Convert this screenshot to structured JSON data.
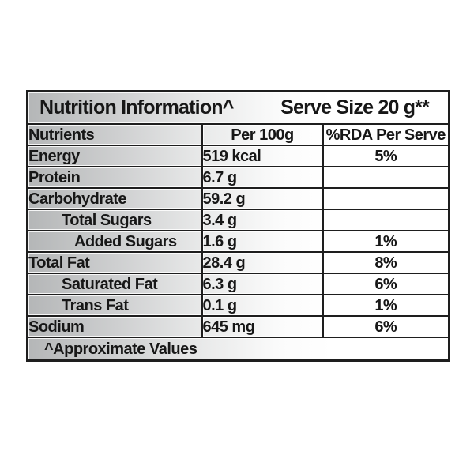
{
  "table": {
    "title": "Nutrition Information^",
    "serve_size": "Serve Size 20 g**",
    "columns": [
      "Nutrients",
      "Per 100g",
      "%RDA Per Serve"
    ],
    "rows": [
      {
        "nutrient": "Energy",
        "per_100g": "519 kcal",
        "rda_per_serve": "5%"
      },
      {
        "nutrient": "Protein",
        "per_100g": "6.7 g",
        "rda_per_serve": ""
      },
      {
        "nutrient": "Carbohydrate",
        "per_100g": "59.2 g",
        "rda_per_serve": ""
      },
      {
        "nutrient": "Total Sugars",
        "per_100g": "3.4 g",
        "rda_per_serve": ""
      },
      {
        "nutrient": "Added Sugars",
        "per_100g": "1.6 g",
        "rda_per_serve": "1%"
      },
      {
        "nutrient": "Total Fat",
        "per_100g": "28.4 g",
        "rda_per_serve": "8%"
      },
      {
        "nutrient": "Saturated Fat",
        "per_100g": "6.3 g",
        "rda_per_serve": "6%"
      },
      {
        "nutrient": "Trans Fat",
        "per_100g": "0.1 g",
        "rda_per_serve": "1%"
      },
      {
        "nutrient": "Sodium",
        "per_100g": "645 mg",
        "rda_per_serve": "6%"
      }
    ],
    "footnote": "^Approximate Values",
    "colors": {
      "border": "#1e1e1e",
      "text": "#171717",
      "gradient_start": "#b4b6b7",
      "gradient_end": "#ffffff"
    }
  }
}
